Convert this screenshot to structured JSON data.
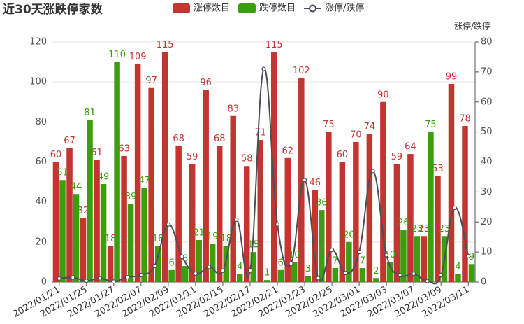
{
  "chart_data": {
    "type": "bar",
    "title": "近30天涨跌停家数",
    "categories": [
      "2022/01/21",
      null,
      "2022/01/25",
      null,
      "2022/01/27",
      null,
      "2022/02/07",
      null,
      "2022/02/09",
      null,
      "2022/02/11",
      null,
      "2022/02/15",
      null,
      "2022/02/17",
      null,
      "2022/02/21",
      null,
      "2022/02/23",
      null,
      "2022/02/25",
      null,
      "2022/03/01",
      null,
      "2022/03/03",
      null,
      "2022/03/07",
      null,
      "2022/03/09",
      null,
      "2022/03/11"
    ],
    "series": [
      {
        "name": "涨停数目",
        "type": "bar",
        "color": "#c23531",
        "values": [
          60,
          67,
          32,
          61,
          18,
          63,
          109,
          97,
          115,
          68,
          59,
          96,
          68,
          83,
          58,
          71,
          115,
          62,
          102,
          46,
          75,
          60,
          70,
          74,
          90,
          59,
          64,
          23,
          53,
          99,
          78
        ]
      },
      {
        "name": "跌停数目",
        "type": "bar",
        "color": "#3a9e0e",
        "values": [
          51,
          44,
          81,
          49,
          110,
          39,
          47,
          18,
          6,
          8,
          21,
          19,
          18,
          4,
          15,
          1,
          6,
          10,
          3,
          36,
          7,
          20,
          7,
          2,
          10,
          26,
          23,
          75,
          23,
          4,
          9
        ]
      },
      {
        "name": "涨停/跌停",
        "type": "line",
        "axis": "y2",
        "color": "#4a4f57",
        "values": [
          1.18,
          1.52,
          0.4,
          1.24,
          0.16,
          1.62,
          2.32,
          5.39,
          19.17,
          8.5,
          2.81,
          5.05,
          3.78,
          20.75,
          3.87,
          71,
          19.17,
          6.2,
          34,
          1.28,
          10.71,
          3,
          10,
          37,
          9,
          2.27,
          2.78,
          0.31,
          2.3,
          24.75,
          8.67
        ]
      }
    ],
    "ylim": [
      0,
      120
    ],
    "yticks": [
      0,
      20,
      40,
      60,
      80,
      100,
      120
    ],
    "y2lim": [
      0,
      80
    ],
    "y2ticks": [
      0,
      10,
      20,
      30,
      40,
      50,
      60,
      70,
      80
    ],
    "y2_label": "涨停/跌停",
    "grid": true
  }
}
